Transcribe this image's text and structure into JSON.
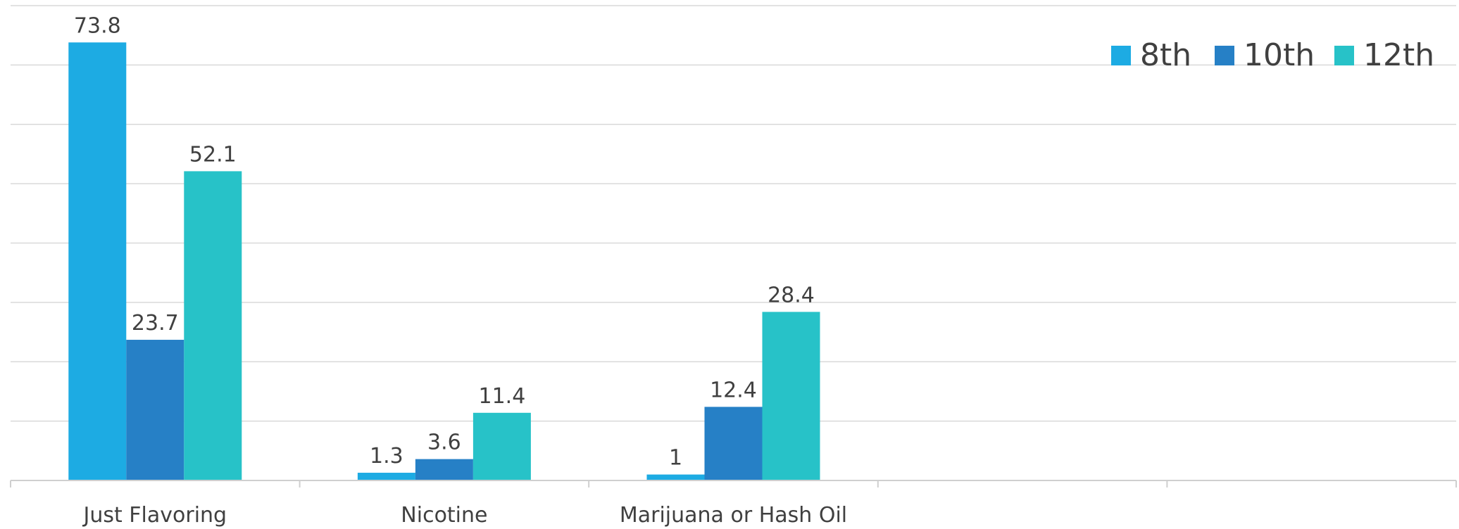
{
  "chart_data": {
    "type": "bar",
    "categories": [
      "Just Flavoring",
      "Nicotine",
      "Marijuana or Hash Oil",
      "",
      ""
    ],
    "series": [
      {
        "name": "8th",
        "values": [
          73.8,
          1.3,
          1,
          null,
          null
        ],
        "color": "#1DABE3"
      },
      {
        "name": "10th",
        "values": [
          23.7,
          3.6,
          12.4,
          null,
          null
        ],
        "color": "#2680C6"
      },
      {
        "name": "12th",
        "values": [
          52.1,
          11.4,
          28.4,
          null,
          null
        ],
        "color": "#27C2C8"
      }
    ],
    "data_labels": [
      [
        "73.8",
        "1.3",
        "1",
        "",
        ""
      ],
      [
        "23.7",
        "3.6",
        "12.4",
        "",
        ""
      ],
      [
        "52.1",
        "11.4",
        "28.4",
        "",
        ""
      ]
    ],
    "title": "",
    "xlabel": "",
    "ylabel": "",
    "ylim": [
      0,
      80
    ],
    "y_gridlines": [
      0,
      10,
      20,
      30,
      40,
      50,
      60,
      70,
      80
    ],
    "grid": true,
    "legend_position": "top-right"
  }
}
